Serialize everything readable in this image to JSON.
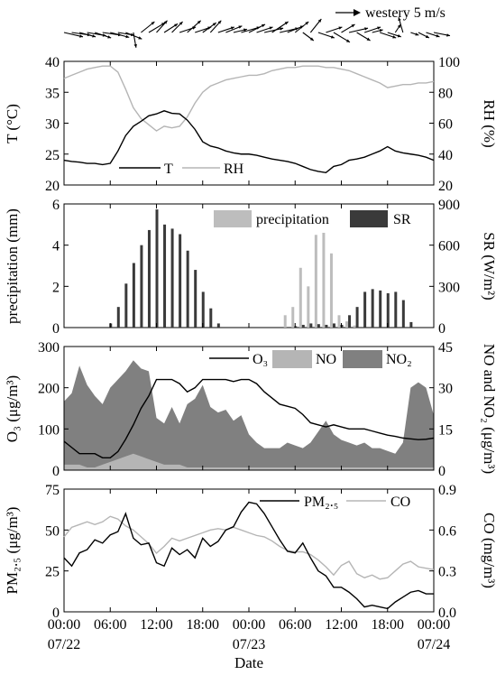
{
  "figure": {
    "xlabel": "Date",
    "x_tick_labels": [
      "00:00",
      "06:00",
      "12:00",
      "18:00",
      "00:00",
      "06:00",
      "12:00",
      "18:00",
      "00:00"
    ],
    "date_labels": [
      {
        "hour": 0,
        "text": "07/22"
      },
      {
        "hour": 24,
        "text": "07/23"
      },
      {
        "hour": 48,
        "text": "07/24"
      }
    ]
  },
  "colors": {
    "black": "#000000",
    "light_gray": "#b5b5b5",
    "dark_gray": "#808080",
    "precip_gray": "#bdbdbd",
    "sr_dark": "#3a3a3a"
  },
  "chart_data": [
    {
      "type": "vector",
      "legend_label": "westery 5 m/s",
      "x_range": [
        0,
        48
      ],
      "hours": [
        0,
        1,
        2,
        3,
        4,
        5,
        6,
        7,
        8,
        9,
        10,
        11,
        12,
        13,
        14,
        15,
        16,
        17,
        18,
        19,
        20,
        21,
        22,
        23,
        24,
        25,
        26,
        27,
        28,
        29,
        30,
        31,
        32,
        33,
        34,
        35,
        36,
        37,
        38,
        39,
        40,
        41,
        42,
        43,
        44,
        45,
        46,
        47,
        48
      ],
      "u": [
        3.5,
        3.5,
        3.0,
        3.5,
        3.0,
        3.5,
        3.5,
        3.0,
        3.0,
        0.5,
        2.5,
        3.0,
        2.0,
        2.5,
        2.0,
        3.0,
        2.5,
        3.0,
        2.5,
        2.0,
        3.0,
        3.0,
        2.5,
        3.5,
        3.0,
        3.0,
        3.5,
        3.0,
        3.5,
        3.0,
        2.5,
        2.0,
        2.0,
        3.0,
        3.0,
        3.0,
        2.5,
        3.5,
        2.5,
        3.0,
        2.0,
        3.0,
        2.5,
        1.0,
        -0.8,
        1.5,
        2.0,
        2.5,
        3.0
      ],
      "v": [
        -0.8,
        -0.5,
        -0.8,
        -0.6,
        -1.0,
        -0.5,
        -0.9,
        -0.5,
        -1.2,
        -2.8,
        2.0,
        1.8,
        2.2,
        1.6,
        2.0,
        1.0,
        2.2,
        1.0,
        1.8,
        2.2,
        1.0,
        1.2,
        0.6,
        1.0,
        1.5,
        1.0,
        0.8,
        2.0,
        0.8,
        1.2,
        2.0,
        -1.5,
        2.5,
        -1.0,
        1.0,
        -1.8,
        1.5,
        0.8,
        -1.5,
        1.0,
        0.5,
        -1.0,
        -0.8,
        1.5,
        2.8,
        -0.5,
        -1.0,
        -0.8,
        -0.6
      ]
    },
    {
      "type": "line",
      "x_range": [
        0,
        48
      ],
      "ylabel": "T (°C)",
      "ylim": [
        20,
        40
      ],
      "yticks": [
        20,
        25,
        30,
        35,
        40
      ],
      "y2label": "RH (%)",
      "y2lim": [
        20,
        100
      ],
      "y2ticks": [
        20,
        40,
        60,
        80,
        100
      ],
      "series": [
        {
          "name": "T",
          "axis": "left",
          "x": [
            0,
            1,
            2,
            3,
            4,
            5,
            6,
            7,
            8,
            9,
            10,
            11,
            12,
            13,
            14,
            15,
            16,
            17,
            18,
            19,
            20,
            21,
            22,
            23,
            24,
            25,
            26,
            27,
            28,
            29,
            30,
            31,
            32,
            33,
            34,
            35,
            36,
            37,
            38,
            39,
            40,
            41,
            42,
            43,
            44,
            45,
            46,
            47,
            48
          ],
          "values": [
            24.0,
            23.8,
            23.7,
            23.5,
            23.5,
            23.3,
            23.5,
            25.5,
            28.0,
            29.5,
            30.3,
            31.2,
            31.5,
            32.0,
            31.6,
            31.5,
            30.5,
            29.0,
            27.0,
            26.3,
            26.0,
            25.5,
            25.2,
            25.0,
            25.0,
            24.8,
            24.5,
            24.2,
            24.0,
            23.8,
            23.5,
            23.0,
            22.5,
            22.2,
            22.0,
            23.0,
            23.3,
            24.0,
            24.2,
            24.5,
            25.0,
            25.5,
            26.2,
            25.5,
            25.2,
            25.0,
            24.8,
            24.5,
            24.0
          ]
        },
        {
          "name": "RH",
          "axis": "right",
          "x": [
            0,
            1,
            2,
            3,
            4,
            5,
            6,
            7,
            8,
            9,
            10,
            11,
            12,
            13,
            14,
            15,
            16,
            17,
            18,
            19,
            20,
            21,
            22,
            23,
            24,
            25,
            26,
            27,
            28,
            29,
            30,
            31,
            32,
            33,
            34,
            35,
            36,
            37,
            38,
            39,
            40,
            41,
            42,
            43,
            44,
            45,
            46,
            47,
            48
          ],
          "values": [
            89,
            91,
            93,
            95,
            96,
            97,
            97,
            93,
            82,
            70,
            63,
            59,
            55,
            58,
            57,
            58,
            64,
            73,
            80,
            84,
            86,
            88,
            89,
            90,
            91,
            91,
            92,
            94,
            95,
            96,
            96,
            97,
            97,
            97,
            96,
            96,
            95,
            94,
            92,
            90,
            88,
            86,
            83,
            84,
            85,
            85,
            86,
            86,
            87
          ]
        }
      ]
    },
    {
      "type": "bar",
      "x_range": [
        0,
        48
      ],
      "ylabel": "precipitation (mm)",
      "ylim": [
        0,
        6
      ],
      "yticks": [
        0,
        2,
        4,
        6
      ],
      "y2label": "SR (W/m²)",
      "y2lim": [
        0,
        900
      ],
      "y2ticks": [
        0,
        300,
        600,
        900
      ],
      "series": [
        {
          "name": "precipitation",
          "axis": "left",
          "x": [
            29,
            30,
            31,
            32,
            33,
            34,
            35,
            36,
            37,
            38
          ],
          "values": [
            0.6,
            1.0,
            2.9,
            2.0,
            4.5,
            4.6,
            3.6,
            0.6,
            0.3,
            0.1
          ]
        },
        {
          "name": "SR",
          "axis": "right",
          "x": [
            6,
            7,
            8,
            9,
            10,
            11,
            12,
            13,
            14,
            15,
            16,
            17,
            18,
            19,
            20,
            30,
            31,
            32,
            33,
            34,
            35,
            36,
            37,
            38,
            39,
            40,
            41,
            42,
            43,
            44,
            45,
            46,
            47,
            48
          ],
          "values": [
            30,
            150,
            320,
            470,
            600,
            710,
            860,
            750,
            720,
            680,
            560,
            420,
            260,
            140,
            30,
            10,
            20,
            30,
            25,
            20,
            30,
            20,
            90,
            150,
            260,
            280,
            270,
            250,
            260,
            200,
            40,
            0,
            0,
            0
          ]
        }
      ]
    },
    {
      "type": "area",
      "x_range": [
        0,
        48
      ],
      "ylabel": "O₃ (μg/m³)",
      "ylim": [
        0,
        300
      ],
      "yticks": [
        0,
        100,
        200,
        300
      ],
      "y2label": "NO and NO₂ (μg/m³)",
      "y2lim": [
        0,
        45
      ],
      "y2ticks": [
        0,
        15,
        30,
        45
      ],
      "series": [
        {
          "name": "O₃",
          "axis": "left",
          "kind": "line",
          "x": [
            0,
            1,
            2,
            3,
            4,
            5,
            6,
            7,
            8,
            9,
            10,
            11,
            12,
            13,
            14,
            15,
            16,
            17,
            18,
            19,
            20,
            21,
            22,
            23,
            24,
            25,
            26,
            27,
            28,
            29,
            30,
            31,
            32,
            33,
            34,
            35,
            36,
            37,
            38,
            39,
            40,
            41,
            42,
            43,
            44,
            45,
            46,
            47,
            48
          ],
          "values": [
            70,
            55,
            40,
            40,
            40,
            30,
            30,
            45,
            75,
            110,
            150,
            180,
            220,
            220,
            220,
            210,
            190,
            200,
            220,
            220,
            220,
            220,
            215,
            220,
            220,
            210,
            190,
            175,
            160,
            155,
            150,
            135,
            115,
            110,
            105,
            110,
            105,
            100,
            100,
            100,
            95,
            90,
            85,
            82,
            78,
            76,
            74,
            75,
            78
          ]
        },
        {
          "name": "NO",
          "axis": "right",
          "kind": "area",
          "x": [
            0,
            1,
            2,
            3,
            4,
            5,
            6,
            7,
            8,
            9,
            10,
            11,
            12,
            13,
            14,
            15,
            16,
            17,
            18,
            19,
            20,
            21,
            22,
            23,
            24,
            25,
            26,
            27,
            28,
            29,
            30,
            31,
            32,
            33,
            34,
            35,
            36,
            37,
            38,
            39,
            40,
            41,
            42,
            43,
            44,
            45,
            46,
            47,
            48
          ],
          "values": [
            2,
            2,
            2,
            1,
            1,
            2,
            3,
            4,
            5,
            6,
            5,
            4,
            3,
            2,
            2,
            2,
            1,
            1,
            1,
            1,
            1,
            1,
            1,
            1,
            1,
            1,
            1,
            1,
            1,
            1,
            1,
            1,
            1,
            1,
            1,
            1,
            1,
            1,
            1,
            1,
            1,
            1,
            1,
            1,
            1,
            1,
            1,
            1,
            1
          ]
        },
        {
          "name": "NO₂",
          "axis": "right",
          "kind": "area",
          "x": [
            0,
            1,
            2,
            3,
            4,
            5,
            6,
            7,
            8,
            9,
            10,
            11,
            12,
            13,
            14,
            15,
            16,
            17,
            18,
            19,
            20,
            21,
            22,
            23,
            24,
            25,
            26,
            27,
            28,
            29,
            30,
            31,
            32,
            33,
            34,
            35,
            36,
            37,
            38,
            39,
            40,
            41,
            42,
            43,
            44,
            45,
            46,
            47,
            48
          ],
          "values": [
            25,
            28,
            38,
            31,
            27,
            24,
            30,
            33,
            36,
            40,
            37,
            36,
            19,
            17,
            23,
            17,
            24,
            26,
            31,
            23,
            21,
            22,
            18,
            20,
            13,
            10,
            8,
            8,
            8,
            10,
            9,
            8,
            10,
            14,
            18,
            13,
            11,
            10,
            9,
            10,
            8,
            8,
            7,
            6,
            10,
            30,
            32,
            30,
            20
          ]
        }
      ]
    },
    {
      "type": "line",
      "x_range": [
        0,
        48
      ],
      "ylabel": "PM₂.₅ (μg/m³)",
      "ylim": [
        0,
        75
      ],
      "yticks": [
        0,
        25,
        50,
        75
      ],
      "y2label": "CO (mg/m³)",
      "y2lim": [
        0,
        0.9
      ],
      "y2ticks": [
        0.0,
        0.3,
        0.6,
        0.9
      ],
      "series": [
        {
          "name": "PM₂.₅",
          "axis": "left",
          "x": [
            0,
            1,
            2,
            3,
            4,
            5,
            6,
            7,
            8,
            9,
            10,
            11,
            12,
            13,
            14,
            15,
            16,
            17,
            18,
            19,
            20,
            21,
            22,
            23,
            24,
            25,
            26,
            27,
            28,
            29,
            30,
            31,
            32,
            33,
            34,
            35,
            36,
            37,
            38,
            39,
            40,
            41,
            42,
            43,
            44,
            45,
            46,
            47,
            48
          ],
          "values": [
            33,
            28,
            36,
            38,
            44,
            42,
            47,
            49,
            60,
            45,
            41,
            42,
            30,
            28,
            39,
            35,
            38,
            33,
            45,
            40,
            43,
            50,
            52,
            61,
            67,
            66,
            60,
            52,
            44,
            37,
            36,
            42,
            33,
            25,
            22,
            15,
            15,
            12,
            8,
            3,
            4,
            3,
            2,
            6,
            9,
            12,
            13,
            11,
            11
          ]
        },
        {
          "name": "CO",
          "axis": "right",
          "x": [
            0,
            1,
            2,
            3,
            4,
            5,
            6,
            7,
            8,
            9,
            10,
            11,
            12,
            13,
            14,
            15,
            16,
            17,
            18,
            19,
            20,
            21,
            22,
            23,
            24,
            25,
            26,
            27,
            28,
            29,
            30,
            31,
            32,
            33,
            34,
            35,
            36,
            37,
            38,
            39,
            40,
            41,
            42,
            43,
            44,
            45,
            46,
            47,
            48
          ],
          "values": [
            0.55,
            0.62,
            0.64,
            0.66,
            0.64,
            0.66,
            0.7,
            0.68,
            0.63,
            0.6,
            0.55,
            0.5,
            0.43,
            0.48,
            0.54,
            0.52,
            0.54,
            0.56,
            0.58,
            0.6,
            0.61,
            0.6,
            0.62,
            0.6,
            0.58,
            0.56,
            0.55,
            0.52,
            0.48,
            0.45,
            0.44,
            0.44,
            0.42,
            0.38,
            0.33,
            0.27,
            0.34,
            0.37,
            0.28,
            0.25,
            0.27,
            0.24,
            0.25,
            0.3,
            0.35,
            0.37,
            0.33,
            0.32,
            0.31
          ]
        }
      ]
    }
  ]
}
